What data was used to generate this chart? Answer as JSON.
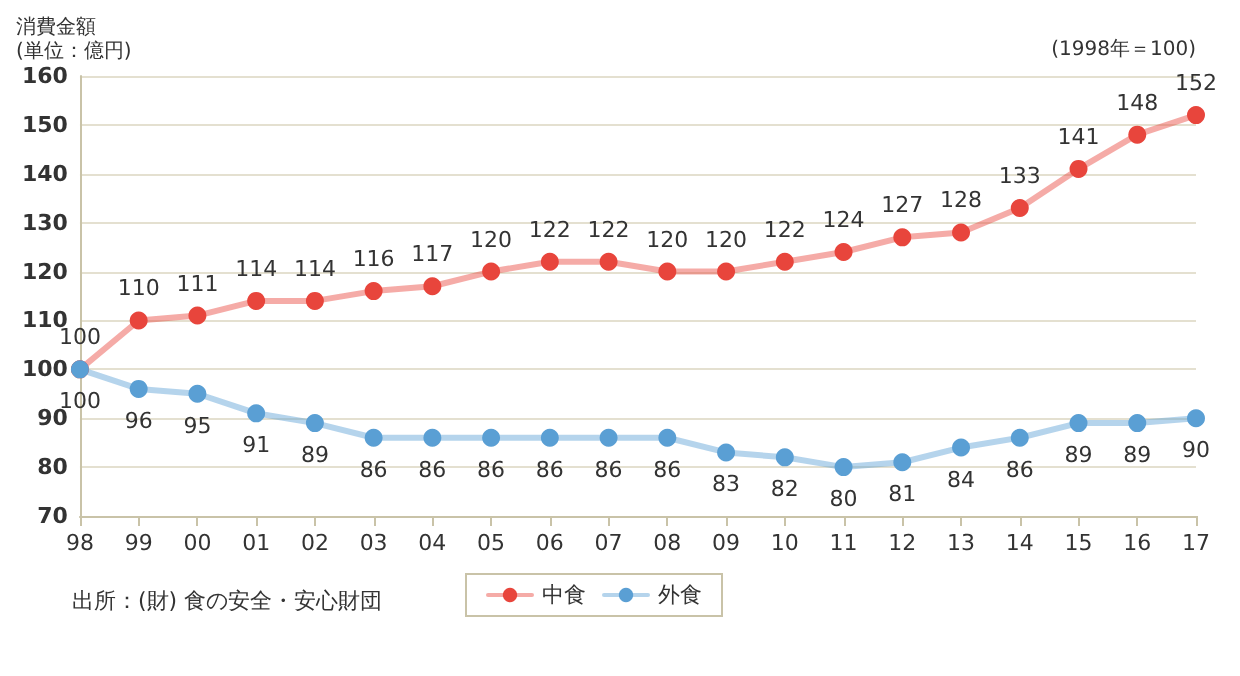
{
  "chart_data": {
    "type": "line",
    "ylabel": "消費金額\n(単位：億円)",
    "categories": [
      "98",
      "99",
      "00",
      "01",
      "02",
      "03",
      "04",
      "05",
      "06",
      "07",
      "08",
      "09",
      "10",
      "11",
      "12",
      "13",
      "14",
      "15",
      "16",
      "17"
    ],
    "series": [
      {
        "name": "中食",
        "color": "#e8453c",
        "values": [
          100,
          110,
          111,
          114,
          114,
          116,
          117,
          120,
          122,
          122,
          120,
          120,
          122,
          124,
          127,
          128,
          133,
          141,
          148,
          152
        ]
      },
      {
        "name": "外食",
        "color": "#5a9fd4",
        "values": [
          100,
          96,
          95,
          91,
          89,
          86,
          86,
          86,
          86,
          86,
          86,
          83,
          82,
          80,
          81,
          84,
          86,
          89,
          89,
          90
        ]
      }
    ],
    "ylim": [
      70,
      160
    ],
    "yticks": [
      70,
      80,
      90,
      100,
      110,
      120,
      130,
      140,
      150,
      160
    ],
    "grid": "y",
    "legend": "bottom",
    "marker": "circle",
    "line_style": "solid",
    "data_labels": true,
    "annotations": [
      "(1998年＝100)",
      "出所：(財) 食の安全・安心財団"
    ]
  }
}
